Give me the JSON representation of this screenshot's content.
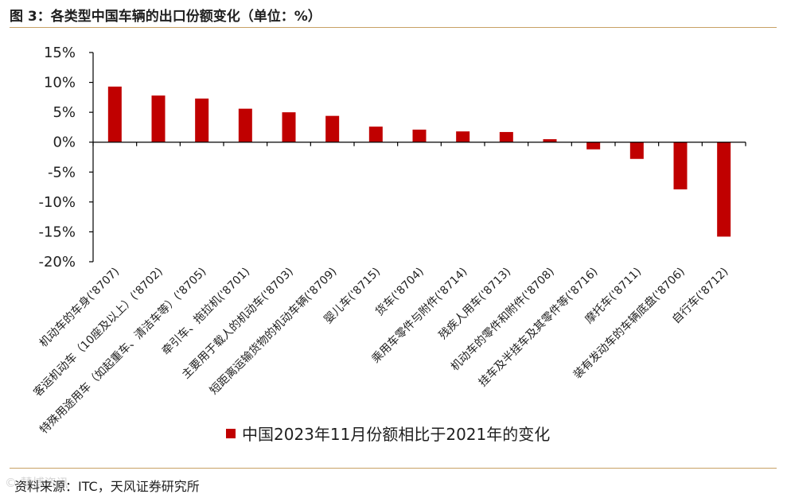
{
  "header": {
    "title": "图 3：各类型中国车辆的出口份额变化（单位：%）"
  },
  "footer": {
    "source": "资料来源：ITC，天风证券研究所",
    "watermark": "© 慧博资讯"
  },
  "colors": {
    "bar": "#c00000",
    "rule": "#c8a165",
    "axis": "#000000"
  },
  "chart_data": {
    "type": "bar",
    "title": "",
    "xlabel": "",
    "ylabel": "",
    "ylim": [
      -20,
      15
    ],
    "yticks": [
      15,
      10,
      5,
      0,
      -5,
      -10,
      -15,
      -20
    ],
    "ytick_labels": [
      "15%",
      "10%",
      "5%",
      "0%",
      "-5%",
      "-10%",
      "-15%",
      "-20%"
    ],
    "grid": false,
    "legend_position": "bottom",
    "categories": [
      "机动车的车身('8707)",
      "客运机动车（10座及以上）('8702)",
      "特殊用途用车（如起重车、清洁车等）('8705)",
      "牵引车、拖拉机('8701)",
      "主要用于载人的机动车('8703)",
      "短距离运输货物的机动车辆('8709)",
      "婴儿车('8715)",
      "货车('8704)",
      "乘用车零件与附件('8714)",
      "残疾人用车('8713)",
      "机动车的零件和附件('8708)",
      "挂车及半挂车及其零件等('8716)",
      "摩托车('8711)",
      "装有发动车的车辆底盘('8706)",
      "自行车('8712)"
    ],
    "series": [
      {
        "name": "中国2023年11月份额相比于2021年的变化",
        "values": [
          9.3,
          7.8,
          7.3,
          5.6,
          5.0,
          4.4,
          2.6,
          2.1,
          1.8,
          1.7,
          0.5,
          -1.2,
          -2.8,
          -7.9,
          -15.8
        ]
      }
    ]
  }
}
